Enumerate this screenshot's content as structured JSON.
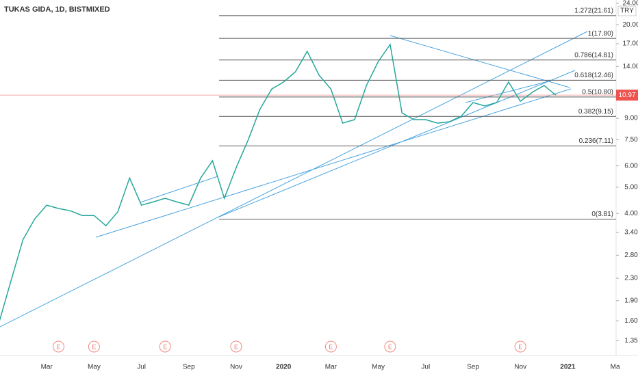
{
  "chart_data": {
    "type": "line",
    "title": "TUKAS GIDA, 1D, BISTMIXED",
    "currency": "TRY",
    "color": "#26a69a",
    "log_scale": true,
    "categories": [
      null,
      null,
      null,
      null,
      "Mar",
      null,
      null,
      null,
      "May",
      null,
      null,
      null,
      "Jul",
      null,
      null,
      null,
      "Sep",
      null,
      null,
      null,
      "Nov",
      null,
      null,
      null,
      "2020",
      null,
      null,
      null,
      "Mar",
      null,
      null,
      null,
      "May",
      null,
      null,
      null,
      "Jul",
      null,
      null,
      null,
      "Sep",
      null,
      null,
      null,
      "Nov",
      null,
      null,
      null,
      "2021",
      null,
      null,
      null,
      "Ma"
    ],
    "values": [
      1.59,
      2.26,
      3.2,
      3.82,
      4.29,
      4.17,
      4.09,
      3.93,
      3.93,
      3.6,
      4.05,
      5.41,
      4.29,
      4.41,
      4.55,
      4.41,
      4.29,
      5.41,
      6.27,
      4.55,
      5.91,
      7.46,
      9.71,
      11.56,
      12.27,
      13.38,
      15.94,
      13.0,
      11.56,
      8.64,
      8.9,
      11.91,
      14.61,
      16.91,
      9.43,
      8.9,
      8.9,
      8.64,
      8.74,
      9.16,
      10.3,
      10.0,
      10.3,
      12.27,
      10.41,
      11.23,
      11.91,
      10.97,
      null,
      null,
      null,
      null,
      null
    ],
    "ylim": [
      1.19,
      24.7
    ],
    "yticks": [
      {
        "value": 24,
        "label": "24.00"
      },
      {
        "value": 20,
        "label": "20.00"
      },
      {
        "value": 17,
        "label": "17.00"
      },
      {
        "value": 14,
        "label": "14.00"
      },
      {
        "value": 9,
        "label": "9.00"
      },
      {
        "value": 7.5,
        "label": "7.50"
      },
      {
        "value": 6,
        "label": "6.00"
      },
      {
        "value": 5,
        "label": "5.00"
      },
      {
        "value": 4,
        "label": "4.00"
      },
      {
        "value": 3.4,
        "label": "3.40"
      },
      {
        "value": 2.8,
        "label": "2.80"
      },
      {
        "value": 2.3,
        "label": "2.30"
      },
      {
        "value": 1.9,
        "label": "1.90"
      },
      {
        "value": 1.6,
        "label": "1.60"
      },
      {
        "value": 1.35,
        "label": "1.35"
      }
    ],
    "last_price": 10.97,
    "fib_levels": [
      {
        "label": "1.272(21.61)",
        "value": 21.61
      },
      {
        "label": "1(17.80)",
        "value": 17.8
      },
      {
        "label": "0.786(14.81)",
        "value": 14.81
      },
      {
        "label": "0.618(12.46)",
        "value": 12.46
      },
      {
        "label": "0.5(10.80)",
        "value": 10.8
      },
      {
        "label": "0.382(9.15)",
        "value": 9.15
      },
      {
        "label": "0.236(7.11)",
        "value": 7.11
      },
      {
        "label": "0(3.81)",
        "value": 3.81
      }
    ],
    "event_label": "E",
    "event_indices": [
      5,
      8,
      14,
      20,
      28,
      33,
      44
    ]
  }
}
